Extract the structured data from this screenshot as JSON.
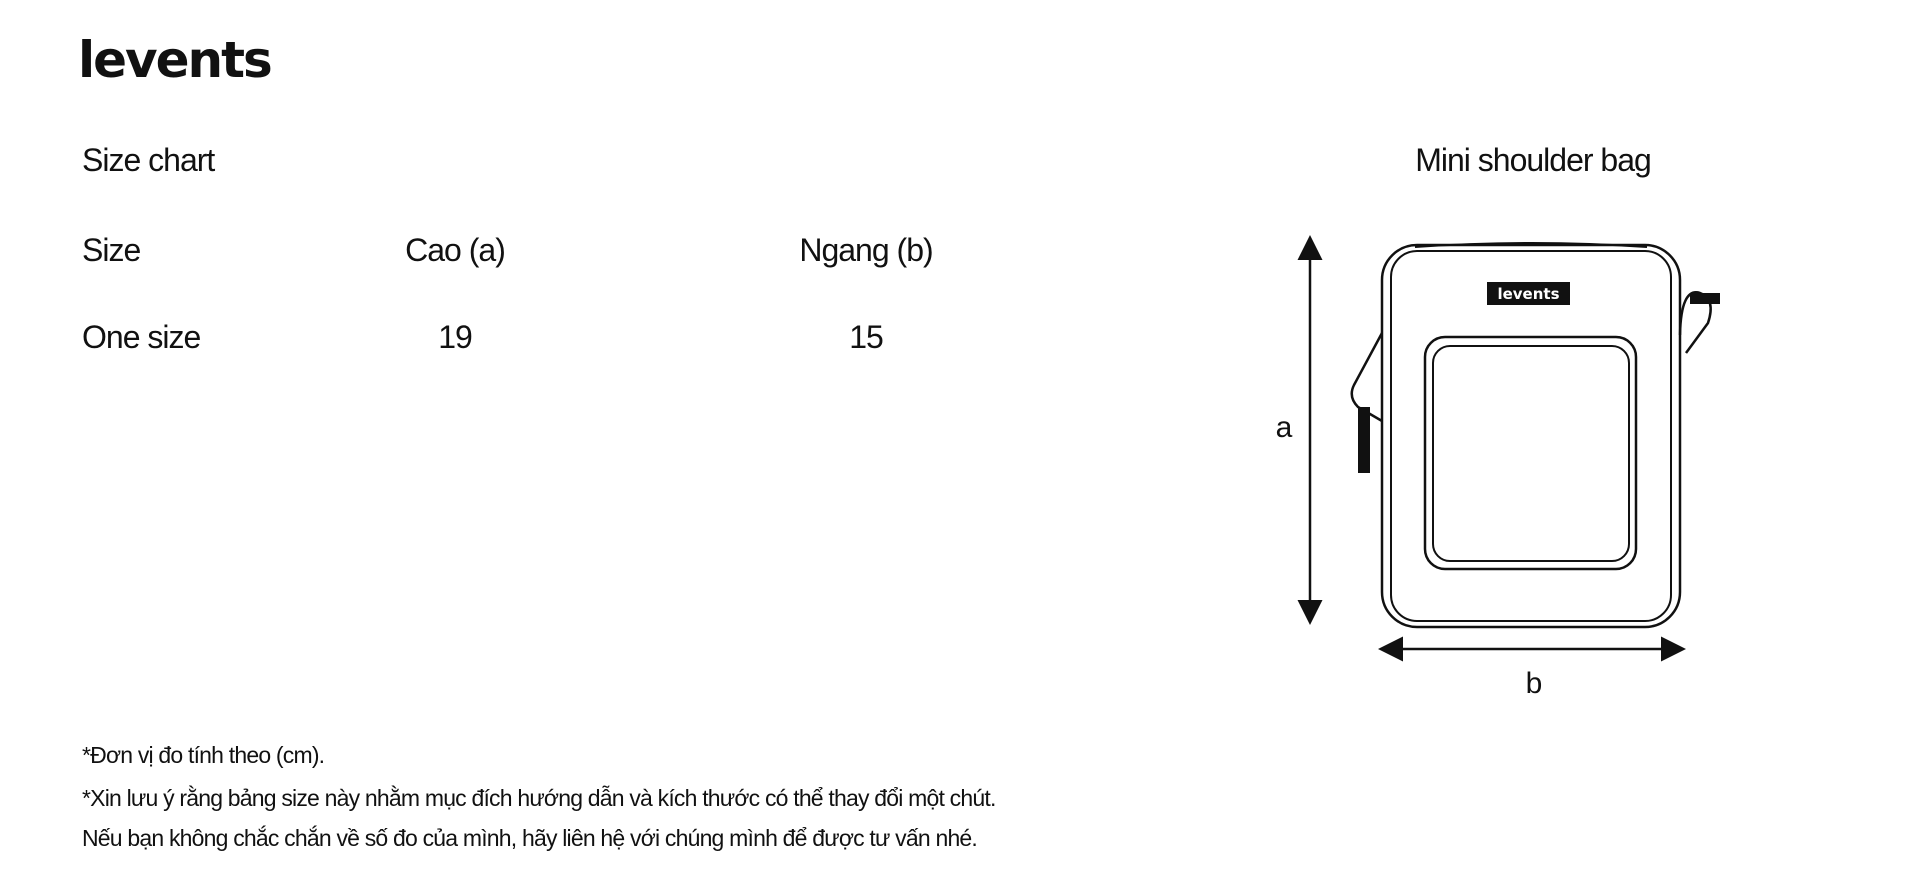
{
  "brand": {
    "logo_text": "levents"
  },
  "size_chart": {
    "title": "Size chart",
    "headers": [
      "Size",
      "Cao (a)",
      "Ngang (b)"
    ],
    "rows": [
      {
        "size": "One size",
        "cao": "19",
        "ngang": "15"
      }
    ]
  },
  "product": {
    "title": "Mini shoulder bag",
    "label_text": "levents",
    "dimension_labels": {
      "height": "a",
      "width": "b"
    }
  },
  "notes": [
    "*Đơn vị đo tính theo (cm).",
    "*Xin lưu ý rằng bảng size này nhằm mục đích hướng dẫn và kích thước có thể thay đổi một chút.",
    "Nếu bạn không chắc chắn về số đo của mình, hãy liên hệ với chúng mình để được tư vấn nhé."
  ],
  "colors": {
    "ink": "#111111",
    "background": "#ffffff"
  }
}
